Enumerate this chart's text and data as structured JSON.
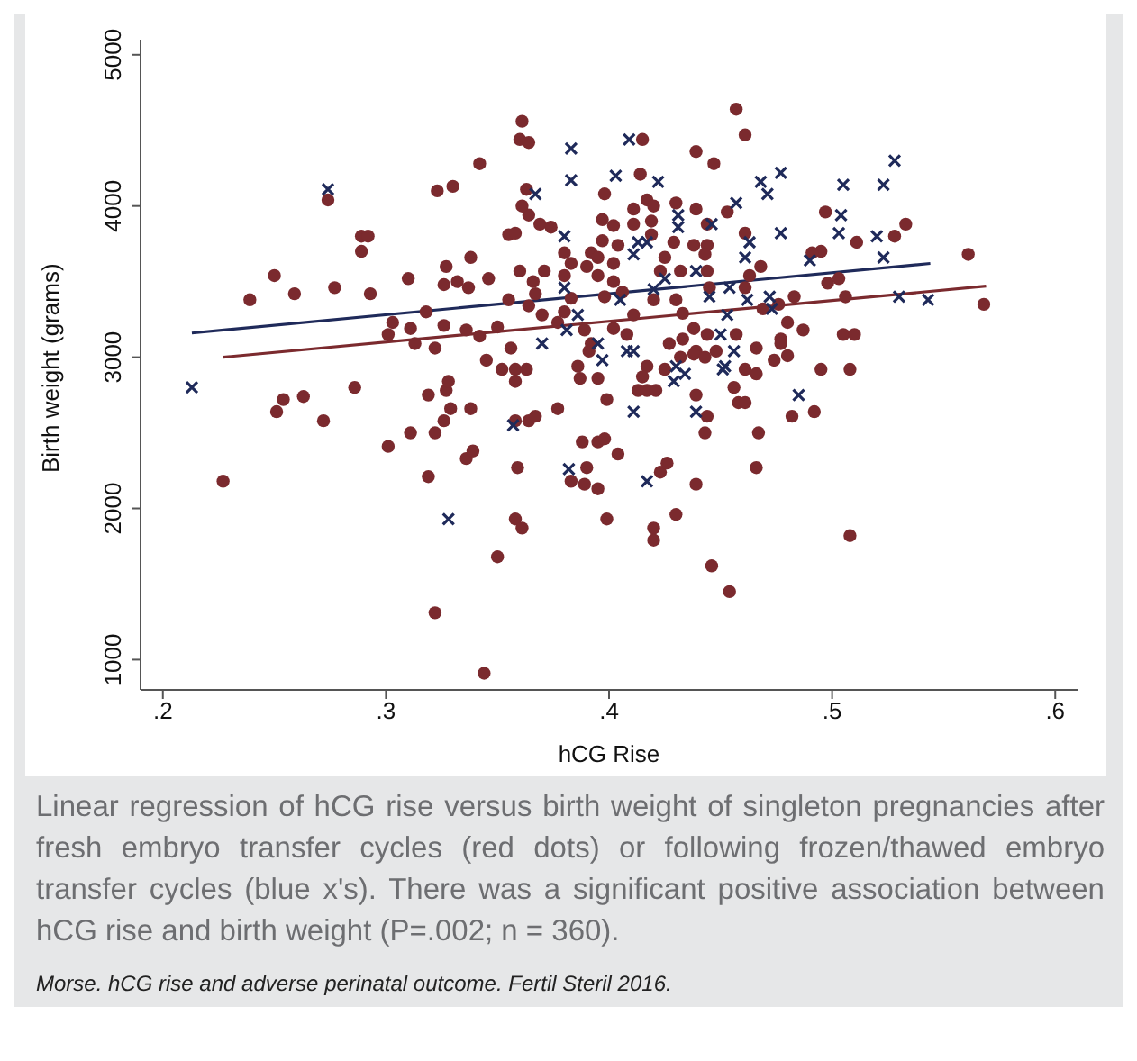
{
  "chart_data": {
    "type": "scatter",
    "xlabel": "hCG Rise",
    "ylabel": "Birth weight (grams)",
    "xlim": [
      0.19,
      0.61
    ],
    "xticks": [
      {
        "value": 0.2,
        "label": ".2"
      },
      {
        "value": 0.3,
        "label": ".3"
      },
      {
        "value": 0.4,
        "label": ".4"
      },
      {
        "value": 0.5,
        "label": ".5"
      },
      {
        "value": 0.6,
        "label": ".6"
      }
    ],
    "ylim": [
      800,
      5100
    ],
    "yticks": [
      1000,
      2000,
      3000,
      4000,
      5000
    ],
    "grid": false,
    "legend": false,
    "annotations": [
      "Linear regression of hCG rise versus birth weight of singleton pregnancies after fresh embryo transfer cycles (red dots) or following frozen/thawed embryo transfer cycles (blue x's). There was a significant positive association between hCG rise and birth weight (P=.002; n = 360).",
      "Morse. hCG rise and adverse perinatal outcome. Fertil Steril 2016."
    ],
    "series": [
      {
        "marker": "circle",
        "color": "#7b2a2e",
        "x": [
          0.361,
          0.36,
          0.364,
          0.342,
          0.323,
          0.33,
          0.274,
          0.289,
          0.292,
          0.289,
          0.25,
          0.259,
          0.277,
          0.293,
          0.31,
          0.239,
          0.327,
          0.338,
          0.326,
          0.332,
          0.346,
          0.337,
          0.303,
          0.318,
          0.311,
          0.301,
          0.313,
          0.322,
          0.326,
          0.336,
          0.342,
          0.35,
          0.345,
          0.352,
          0.356,
          0.358,
          0.363,
          0.355,
          0.36,
          0.364,
          0.361,
          0.363,
          0.355,
          0.358,
          0.369,
          0.374,
          0.371,
          0.366,
          0.367,
          0.364,
          0.37,
          0.377,
          0.38,
          0.383,
          0.38,
          0.38,
          0.383,
          0.39,
          0.392,
          0.397,
          0.397,
          0.398,
          0.389,
          0.392,
          0.391,
          0.386,
          0.457,
          0.461,
          0.415,
          0.439,
          0.447,
          0.414,
          0.417,
          0.42,
          0.411,
          0.43,
          0.439,
          0.402,
          0.411,
          0.419,
          0.444,
          0.453,
          0.404,
          0.419,
          0.429,
          0.438,
          0.444,
          0.461,
          0.395,
          0.402,
          0.425,
          0.443,
          0.497,
          0.511,
          0.528,
          0.533,
          0.495,
          0.491,
          0.561,
          0.395,
          0.402,
          0.423,
          0.432,
          0.444,
          0.468,
          0.463,
          0.498,
          0.503,
          0.506,
          0.483,
          0.469,
          0.476,
          0.398,
          0.406,
          0.42,
          0.43,
          0.445,
          0.461,
          0.568,
          0.411,
          0.433,
          0.438,
          0.48,
          0.487,
          0.505,
          0.51,
          0.402,
          0.408,
          0.427,
          0.433,
          0.444,
          0.457,
          0.466,
          0.477,
          0.477,
          0.48,
          0.474,
          0.495,
          0.508,
          0.461,
          0.466,
          0.417,
          0.425,
          0.439,
          0.448,
          0.415,
          0.227,
          0.251,
          0.254,
          0.263,
          0.272,
          0.286,
          0.301,
          0.311,
          0.319,
          0.319,
          0.322,
          0.326,
          0.327,
          0.328,
          0.329,
          0.338,
          0.336,
          0.339,
          0.358,
          0.358,
          0.364,
          0.367,
          0.377,
          0.359,
          0.358,
          0.361,
          0.35,
          0.322,
          0.344,
          0.387,
          0.395,
          0.388,
          0.395,
          0.398,
          0.39,
          0.383,
          0.389,
          0.395,
          0.399,
          0.399,
          0.413,
          0.417,
          0.421,
          0.439,
          0.444,
          0.443,
          0.456,
          0.458,
          0.461,
          0.467,
          0.466,
          0.482,
          0.492,
          0.404,
          0.423,
          0.426,
          0.439,
          0.43,
          0.42,
          0.42,
          0.508,
          0.446,
          0.454,
          0.432,
          0.438,
          0.443
        ],
        "values": [
          4560,
          4440,
          4420,
          4280,
          4100,
          4130,
          4040,
          3800,
          3800,
          3700,
          3540,
          3420,
          3460,
          3420,
          3520,
          3380,
          3600,
          3660,
          3480,
          3500,
          3520,
          3460,
          3230,
          3300,
          3190,
          3150,
          3090,
          3060,
          3210,
          3180,
          3140,
          3200,
          2980,
          2920,
          3060,
          2920,
          2920,
          3380,
          3570,
          3940,
          4000,
          4110,
          3810,
          3820,
          3880,
          3860,
          3570,
          3500,
          3420,
          3340,
          3280,
          3230,
          3300,
          3390,
          3540,
          3690,
          3620,
          3600,
          3690,
          3910,
          3770,
          4080,
          3180,
          3090,
          3040,
          2940,
          4640,
          4470,
          4440,
          4360,
          4280,
          4210,
          4040,
          4000,
          3980,
          4020,
          3980,
          3870,
          3880,
          3900,
          3880,
          3960,
          3740,
          3810,
          3760,
          3740,
          3740,
          3820,
          3660,
          3620,
          3660,
          3680,
          3960,
          3760,
          3800,
          3880,
          3700,
          3690,
          3680,
          3540,
          3500,
          3570,
          3570,
          3570,
          3600,
          3540,
          3490,
          3520,
          3400,
          3400,
          3320,
          3350,
          3400,
          3430,
          3380,
          3380,
          3460,
          3460,
          3350,
          3280,
          3290,
          3190,
          3230,
          3180,
          3150,
          3150,
          3190,
          3150,
          3090,
          3120,
          3150,
          3150,
          3060,
          3120,
          3090,
          3010,
          2980,
          2920,
          2920,
          2920,
          2890,
          2940,
          2920,
          3040,
          3040,
          2870,
          2180,
          2640,
          2720,
          2740,
          2580,
          2800,
          2410,
          2500,
          2210,
          2750,
          2500,
          2580,
          2780,
          2840,
          2660,
          2660,
          2330,
          2380,
          2840,
          2580,
          2580,
          2610,
          2660,
          2270,
          1930,
          1870,
          1680,
          1310,
          910,
          2860,
          2860,
          2440,
          2440,
          2460,
          2270,
          2180,
          2160,
          2130,
          1930,
          2720,
          2780,
          2780,
          2780,
          2750,
          2610,
          2500,
          2800,
          2700,
          2700,
          2500,
          2270,
          2610,
          2640,
          2360,
          2240,
          2300,
          2160,
          1960,
          1870,
          1790,
          1820,
          1620,
          1450,
          3000,
          3020,
          3000
        ]
      },
      {
        "marker": "cross",
        "color": "#1f2a5a",
        "x": [
          0.274,
          0.383,
          0.383,
          0.367,
          0.38,
          0.38,
          0.386,
          0.37,
          0.381,
          0.395,
          0.397,
          0.409,
          0.403,
          0.422,
          0.468,
          0.477,
          0.471,
          0.457,
          0.431,
          0.431,
          0.446,
          0.413,
          0.417,
          0.411,
          0.463,
          0.477,
          0.461,
          0.49,
          0.505,
          0.523,
          0.528,
          0.504,
          0.503,
          0.52,
          0.523,
          0.439,
          0.425,
          0.454,
          0.445,
          0.462,
          0.472,
          0.473,
          0.453,
          0.53,
          0.543,
          0.405,
          0.42,
          0.45,
          0.456,
          0.408,
          0.411,
          0.43,
          0.452,
          0.451,
          0.434,
          0.213,
          0.328,
          0.357,
          0.382,
          0.411,
          0.439,
          0.417,
          0.485,
          0.429
        ],
        "values": [
          4110,
          4380,
          4170,
          4080,
          3800,
          3460,
          3280,
          3090,
          3180,
          3090,
          2980,
          4440,
          4200,
          4160,
          4160,
          4220,
          4080,
          4020,
          3940,
          3860,
          3880,
          3760,
          3760,
          3680,
          3760,
          3820,
          3660,
          3640,
          4140,
          4140,
          4300,
          3940,
          3820,
          3800,
          3660,
          3570,
          3520,
          3460,
          3400,
          3380,
          3400,
          3320,
          3280,
          3400,
          3380,
          3380,
          3450,
          3150,
          3040,
          3040,
          3040,
          2940,
          2940,
          2920,
          2890,
          2800,
          1930,
          2550,
          2260,
          2640,
          2640,
          2180,
          2750,
          2840
        ]
      },
      {
        "type": "line",
        "marker": "none",
        "line_style": "solid",
        "color": "#1f2a5a",
        "x": [
          0.213,
          0.544
        ],
        "values": [
          3160,
          3620
        ]
      },
      {
        "type": "line",
        "marker": "none",
        "line_style": "solid",
        "color": "#7b2a2e",
        "x": [
          0.227,
          0.569
        ],
        "values": [
          3000,
          3470
        ]
      }
    ]
  }
}
